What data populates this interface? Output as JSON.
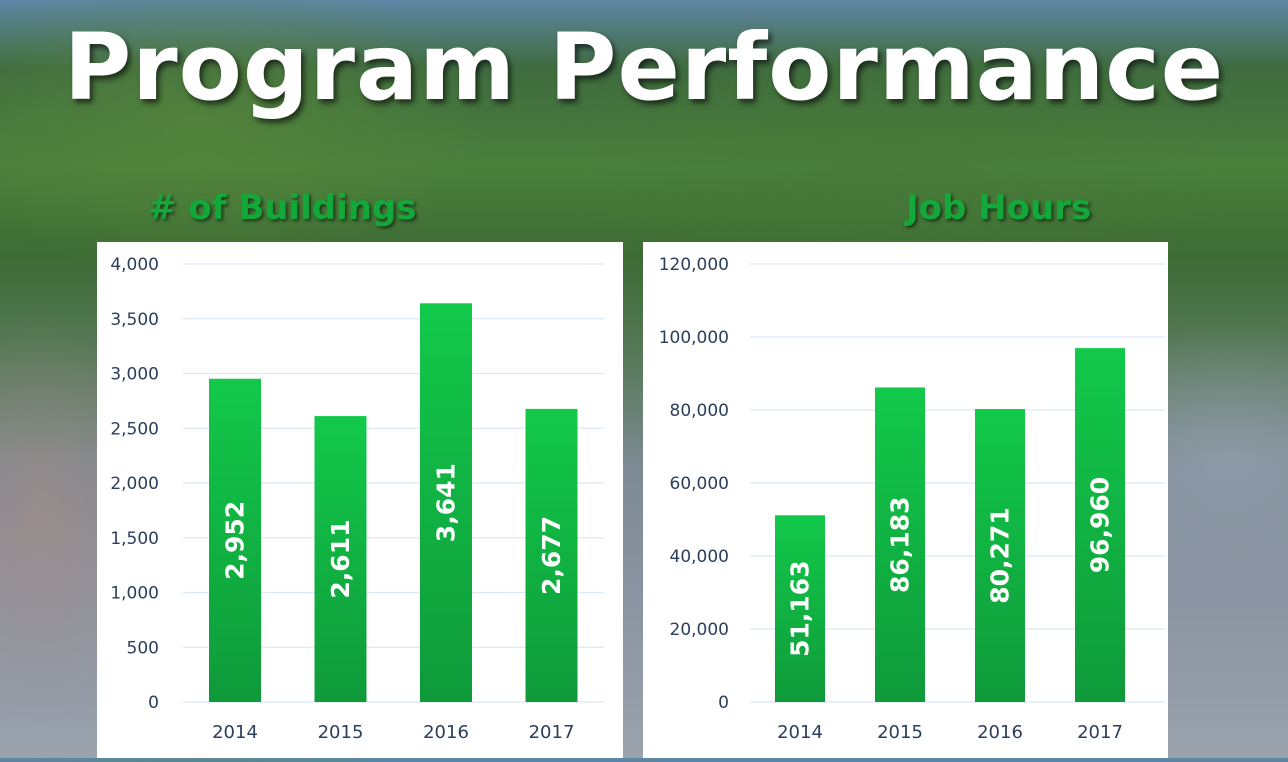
{
  "page": {
    "title": "Program Performance"
  },
  "colors": {
    "bar_top": "#12c94a",
    "bar_bottom": "#0f9a3a",
    "gridline": "#dce8f2",
    "axis_text": "#2c3e5c",
    "chart_title": "#13a83a"
  },
  "chart_data": [
    {
      "type": "bar",
      "title": "# of Buildings",
      "categories": [
        "2014",
        "2015",
        "2016",
        "2017"
      ],
      "values": [
        2952,
        2611,
        3641,
        2677
      ],
      "value_labels": [
        "2,952",
        "2,611",
        "3,641",
        "2,677"
      ],
      "y_ticks": [
        0,
        500,
        1000,
        1500,
        2000,
        2500,
        3000,
        3500,
        4000
      ],
      "y_tick_labels": [
        "0",
        "500",
        "1,000",
        "1,500",
        "2,000",
        "2,500",
        "3,000",
        "3,500",
        "4,000"
      ],
      "ylim": [
        0,
        4000
      ],
      "grid": true,
      "legend": "none"
    },
    {
      "type": "bar",
      "title": "Job Hours",
      "categories": [
        "2014",
        "2015",
        "2016",
        "2017"
      ],
      "values": [
        51163,
        86183,
        80271,
        96960
      ],
      "value_labels": [
        "51,163",
        "86,183",
        "80,271",
        "96,960"
      ],
      "y_ticks": [
        0,
        20000,
        40000,
        60000,
        80000,
        100000,
        120000
      ],
      "y_tick_labels": [
        "0",
        "20,000",
        "40,000",
        "60,000",
        "80,000",
        "100,000",
        "120,000"
      ],
      "ylim": [
        0,
        120000
      ],
      "grid": true,
      "legend": "none"
    }
  ]
}
